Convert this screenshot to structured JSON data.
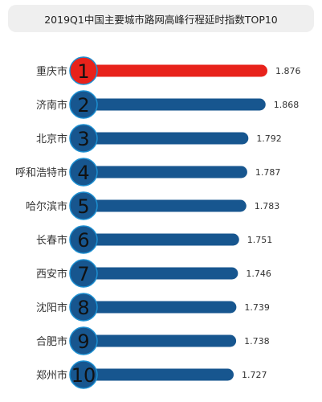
{
  "chart_data": {
    "type": "bar",
    "orientation": "horizontal",
    "title": "2019Q1中国主要城市路网高峰行程延时指数TOP10",
    "categories": [
      "重庆市",
      "济南市",
      "北京市",
      "呼和浩特市",
      "哈尔滨市",
      "长春市",
      "西安市",
      "沈阳市",
      "合肥市",
      "郑州市"
    ],
    "ranks": [
      "1",
      "2",
      "3",
      "4",
      "5",
      "6",
      "7",
      "8",
      "9",
      "10"
    ],
    "values": [
      1.876,
      1.868,
      1.792,
      1.787,
      1.783,
      1.751,
      1.746,
      1.739,
      1.738,
      1.727
    ],
    "value_labels": [
      "1.876",
      "1.868",
      "1.792",
      "1.787",
      "1.783",
      "1.751",
      "1.746",
      "1.739",
      "1.738",
      "1.727"
    ],
    "highlight_color": "#e8221b",
    "bar_color": "#17568f",
    "circle_outline_color": "#1c8fd1",
    "grid": false,
    "legend": "none"
  }
}
